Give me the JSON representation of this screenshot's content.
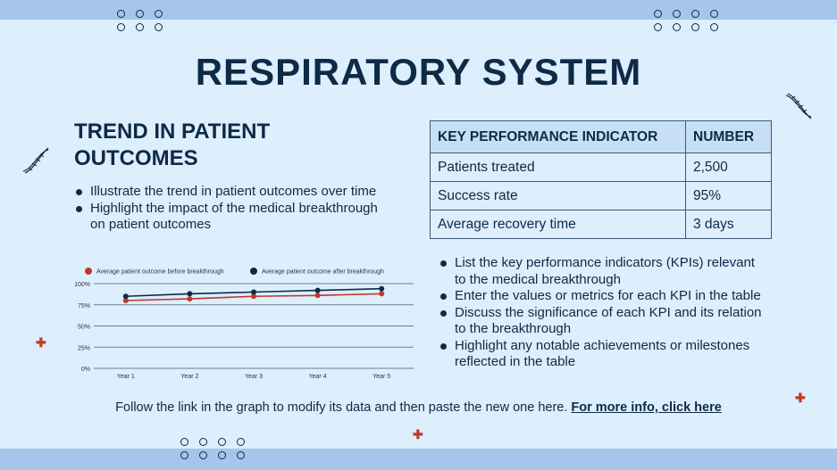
{
  "title": "RESPIRATORY SYSTEM",
  "section_title": "TREND IN PATIENT OUTCOMES",
  "left_bullets": [
    "Illustrate the trend in patient outcomes over time",
    "Highlight the impact of the medical breakthrough on patient outcomes"
  ],
  "table": {
    "headers": [
      "KEY PERFORMANCE INDICATOR",
      "NUMBER"
    ],
    "rows": [
      [
        "Patients treated",
        "2,500"
      ],
      [
        "Success rate",
        "95%"
      ],
      [
        "Average recovery time",
        "3 days"
      ]
    ]
  },
  "right_bullets": [
    "List the key performance indicators (KPIs) relevant to the medical breakthrough",
    "Enter the values or metrics for each KPI in the table",
    "Discuss the significance of each KPI and its relation to the breakthrough",
    "Highlight any notable achievements or milestones reflected in the table"
  ],
  "footer": {
    "text": "Follow the link in the graph to modify its data and then paste the new one here. ",
    "link": "For more info, click here"
  },
  "colors": {
    "background": "#ddeefc",
    "bar": "#a5c5ea",
    "navy": "#0d2a47",
    "red": "#c0392b"
  },
  "chart_data": {
    "type": "line",
    "categories": [
      "Year 1",
      "Year 2",
      "Year 3",
      "Year 4",
      "Year 5"
    ],
    "series": [
      {
        "name": "Average patient outcome before breakthrough",
        "values": [
          80,
          82,
          85,
          86,
          88
        ],
        "color": "#c0392b"
      },
      {
        "name": "Average patient outcome after breakthrough",
        "values": [
          85,
          88,
          90,
          92,
          94
        ],
        "color": "#0d2a47"
      }
    ],
    "ylim": [
      0,
      100
    ],
    "yticks": [
      "0%",
      "25%",
      "50%",
      "75%",
      "100%"
    ],
    "grid": true,
    "legend": "top"
  }
}
